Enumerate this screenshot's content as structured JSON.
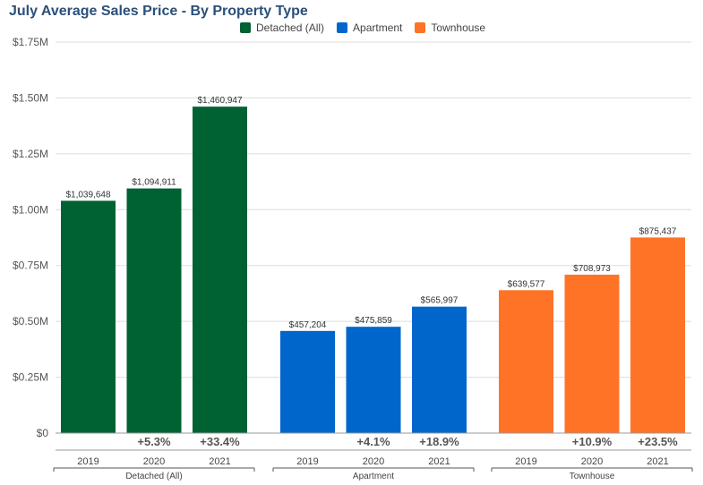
{
  "chart_data": {
    "type": "bar",
    "title": "July Average Sales Price - By Property Type",
    "ylim": [
      0,
      1750000
    ],
    "yticks": [
      "$0",
      "$0.25M",
      "$0.50M",
      "$0.75M",
      "$1.00M",
      "$1.25M",
      "$1.50M",
      "$1.75M"
    ],
    "ytick_values": [
      0,
      250000,
      500000,
      750000,
      1000000,
      1250000,
      1500000,
      1750000
    ],
    "grid": true,
    "legend_position": "top",
    "groups": [
      {
        "name": "Detached (All)",
        "color": "#006132",
        "years": [
          "2019",
          "2020",
          "2021"
        ],
        "values": [
          1039648,
          1094911,
          1460947
        ],
        "value_labels": [
          "$1,039,648",
          "$1,094,911",
          "$1,460,947"
        ],
        "changes": [
          "",
          "+5.3%",
          "+33.4%"
        ]
      },
      {
        "name": "Apartment",
        "color": "#0066cc",
        "years": [
          "2019",
          "2020",
          "2021"
        ],
        "values": [
          457204,
          475859,
          565997
        ],
        "value_labels": [
          "$457,204",
          "$475,859",
          "$565,997"
        ],
        "changes": [
          "",
          "+4.1%",
          "+18.9%"
        ]
      },
      {
        "name": "Townhouse",
        "color": "#ff7326",
        "years": [
          "2019",
          "2020",
          "2021"
        ],
        "values": [
          639577,
          708973,
          875437
        ],
        "value_labels": [
          "$639,577",
          "$708,973",
          "$875,437"
        ],
        "changes": [
          "",
          "+10.9%",
          "+23.5%"
        ]
      }
    ]
  },
  "legend": [
    {
      "label": "Detached (All)",
      "color": "#006132"
    },
    {
      "label": "Apartment",
      "color": "#0066cc"
    },
    {
      "label": "Townhouse",
      "color": "#ff7326"
    }
  ]
}
